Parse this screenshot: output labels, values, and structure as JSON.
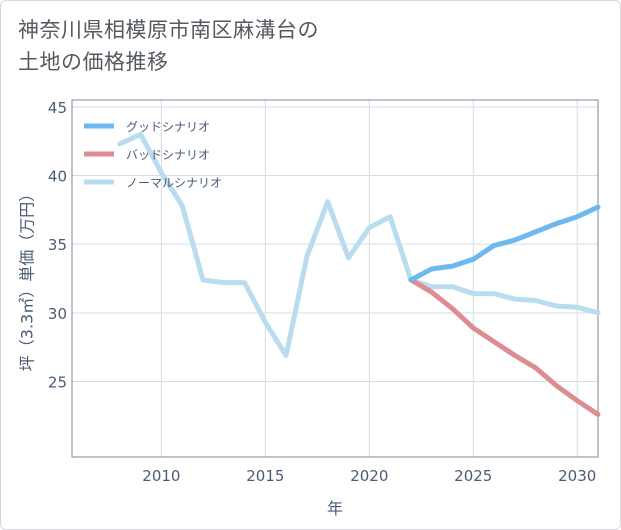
{
  "title": {
    "line1": "神奈川県相模原市南区麻溝台の",
    "line2": "土地の価格推移"
  },
  "chart_data": {
    "type": "line",
    "xlabel": "年",
    "ylabel": "坪（3.3㎡）単価（万円）",
    "xlim": [
      2005.7,
      2031
    ],
    "ylim": [
      19.5,
      45.5
    ],
    "xticks": [
      2010,
      2015,
      2020,
      2025,
      2030
    ],
    "yticks": [
      25,
      30,
      35,
      40,
      45
    ],
    "grid": true,
    "legend_position": "top-left",
    "series": [
      {
        "name": "グッドシナリオ",
        "color": "#6cb8ef",
        "x": [
          2022,
          2023,
          2024,
          2025,
          2026,
          2027,
          2028,
          2029,
          2030,
          2031
        ],
        "values": [
          32.4,
          33.2,
          33.4,
          33.9,
          34.9,
          35.3,
          35.9,
          36.5,
          37.0,
          37.7
        ]
      },
      {
        "name": "バッドシナリオ",
        "color": "#de8c94",
        "x": [
          2022,
          2023,
          2024,
          2025,
          2026,
          2027,
          2028,
          2029,
          2030,
          2031
        ],
        "values": [
          32.4,
          31.5,
          30.3,
          28.9,
          27.9,
          26.9,
          26.0,
          24.7,
          23.6,
          22.6
        ]
      },
      {
        "name": "ノーマルシナリオ",
        "color": "#b9dcef",
        "x": [
          2008,
          2009,
          2010,
          2011,
          2012,
          2013,
          2014,
          2015,
          2016,
          2017,
          2018,
          2019,
          2020,
          2021,
          2022,
          2023,
          2024,
          2025,
          2026,
          2027,
          2028,
          2029,
          2030,
          2031
        ],
        "values": [
          42.3,
          43.0,
          40.2,
          37.8,
          32.4,
          32.2,
          32.2,
          29.3,
          26.9,
          34.1,
          38.1,
          34.0,
          36.2,
          37.0,
          32.4,
          31.9,
          31.9,
          31.4,
          31.4,
          31.0,
          30.9,
          30.5,
          30.4,
          30.0
        ]
      }
    ]
  }
}
